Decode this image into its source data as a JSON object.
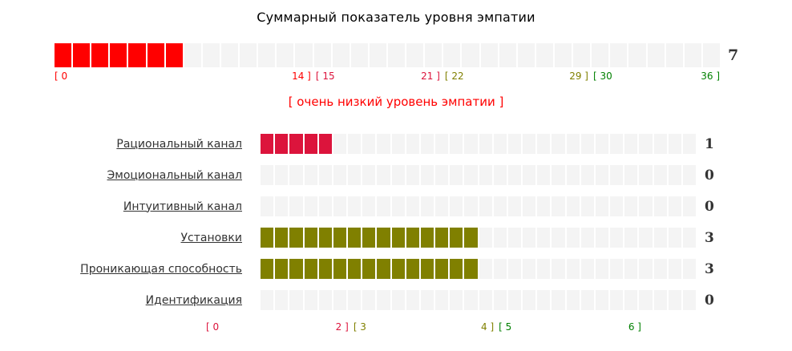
{
  "title": "Суммарный показатель уровня эмпатии",
  "colors": {
    "red": "#ff0000",
    "crimson": "#dc143c",
    "olive": "#808000",
    "green": "#008000",
    "empty_cell": "#f4f4f4",
    "value_text": "#333333"
  },
  "summary": {
    "value_label": "7",
    "cells_total": 36,
    "cells_filled": 7,
    "fill_color": "#ff0000",
    "scale_labels": [
      {
        "text": "[ 0",
        "color": "#ff0000",
        "percent": 0,
        "anchor": "start"
      },
      {
        "text": "14 ]",
        "color": "#ff0000",
        "percent": 38.9,
        "anchor": "end"
      },
      {
        "text": "[ 15",
        "color": "#dc143c",
        "percent": 38.9,
        "anchor": "start"
      },
      {
        "text": "21 ]",
        "color": "#dc143c",
        "percent": 58.3,
        "anchor": "end"
      },
      {
        "text": "[ 22",
        "color": "#808000",
        "percent": 58.3,
        "anchor": "start"
      },
      {
        "text": "29 ]",
        "color": "#808000",
        "percent": 80.6,
        "anchor": "end"
      },
      {
        "text": "[ 30",
        "color": "#008000",
        "percent": 80.6,
        "anchor": "start"
      },
      {
        "text": "36 ]",
        "color": "#008000",
        "percent": 100,
        "anchor": "end"
      }
    ],
    "status": {
      "text": "[ очень низкий уровень эмпатии ]",
      "color": "#ff0000"
    }
  },
  "rows_cells_total": 30,
  "rows": [
    {
      "label": "Рациональный канал",
      "value": "1",
      "cells_filled": 5,
      "fill_color": "#dc143c"
    },
    {
      "label": "Эмоциональный канал",
      "value": "0",
      "cells_filled": 0,
      "fill_color": ""
    },
    {
      "label": "Интуитивный канал",
      "value": "0",
      "cells_filled": 0,
      "fill_color": ""
    },
    {
      "label": "Установки",
      "value": "3",
      "cells_filled": 15,
      "fill_color": "#808000"
    },
    {
      "label": "Проникающая способность",
      "value": "3",
      "cells_filled": 15,
      "fill_color": "#808000"
    },
    {
      "label": "Идентификация",
      "value": "0",
      "cells_filled": 0,
      "fill_color": ""
    }
  ],
  "rows_scale_labels": [
    {
      "text": "[ 0",
      "color": "#dc143c",
      "percent": 0,
      "anchor": "start"
    },
    {
      "text": "2 ]",
      "color": "#dc143c",
      "percent": 33.3,
      "anchor": "end"
    },
    {
      "text": "[ 3",
      "color": "#808000",
      "percent": 33.3,
      "anchor": "start"
    },
    {
      "text": "4 ]",
      "color": "#808000",
      "percent": 66.7,
      "anchor": "end"
    },
    {
      "text": "[ 5",
      "color": "#008000",
      "percent": 66.7,
      "anchor": "start"
    },
    {
      "text": "6 ]",
      "color": "#008000",
      "percent": 100,
      "anchor": "end"
    }
  ],
  "chart_data": [
    {
      "type": "bar",
      "title": "Суммарный показатель уровня эмпатии",
      "categories": [
        "Суммарный показатель уровня эмпатии"
      ],
      "values": [
        7
      ],
      "xlim": [
        0,
        36
      ],
      "zones": [
        {
          "range": [
            0,
            14
          ],
          "color": "#ff0000"
        },
        {
          "range": [
            15,
            21
          ],
          "color": "#dc143c"
        },
        {
          "range": [
            22,
            29
          ],
          "color": "#808000"
        },
        {
          "range": [
            30,
            36
          ],
          "color": "#008000"
        }
      ],
      "annotation": "[ очень низкий уровень эмпатии ]"
    },
    {
      "type": "bar",
      "categories": [
        "Рациональный канал",
        "Эмоциональный канал",
        "Интуитивный канал",
        "Установки",
        "Проникающая способность",
        "Идентификация"
      ],
      "values": [
        1,
        0,
        0,
        3,
        3,
        0
      ],
      "xlim": [
        0,
        6
      ],
      "zones": [
        {
          "range": [
            0,
            2
          ],
          "color": "#dc143c"
        },
        {
          "range": [
            3,
            4
          ],
          "color": "#808000"
        },
        {
          "range": [
            5,
            6
          ],
          "color": "#008000"
        }
      ]
    }
  ]
}
